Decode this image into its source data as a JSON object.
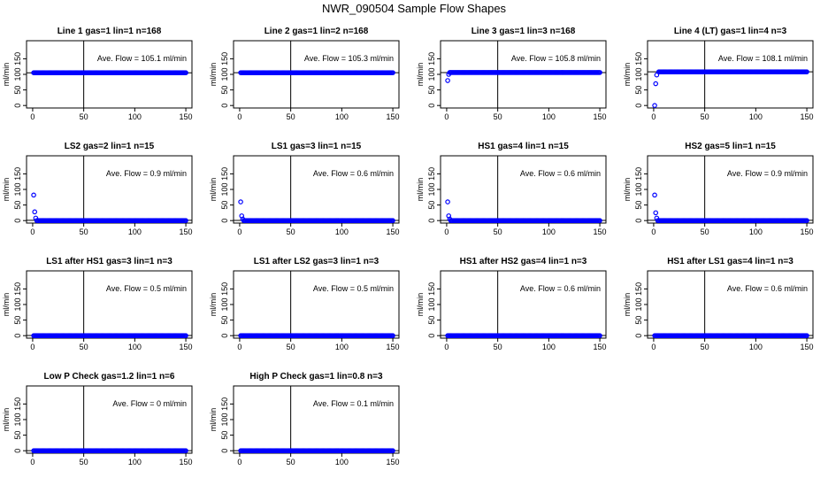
{
  "figure": {
    "title": "NWR_090504  Sample Flow Shapes"
  },
  "style": {
    "point_color": "#0000ff",
    "axis_color": "#000000"
  },
  "chart_data": [
    {
      "type": "scatter",
      "title": "Line 1 gas=1 lin=1 n=168",
      "annotation": "Ave. Flow =  105.1  ml/min",
      "xlabel": "",
      "ylabel": "ml/min",
      "xlim": [
        0,
        150
      ],
      "ylim": [
        0,
        200
      ],
      "xticks": [
        0,
        50,
        100,
        150
      ],
      "yticks": [
        0,
        50,
        100,
        150
      ],
      "vline": 50,
      "hline": 105.1,
      "series": [
        {
          "points": [
            [
              1,
              105.1
            ],
            [
              150,
              105.1
            ]
          ],
          "start": 1,
          "end": 150,
          "level": 105.1
        }
      ]
    },
    {
      "type": "scatter",
      "title": "Line 2 gas=1 lin=2 n=168",
      "annotation": "Ave. Flow =  105.3  ml/min",
      "xlabel": "",
      "ylabel": "ml/min",
      "xlim": [
        0,
        150
      ],
      "ylim": [
        0,
        200
      ],
      "xticks": [
        0,
        50,
        100,
        150
      ],
      "yticks": [
        0,
        50,
        100,
        150
      ],
      "vline": 50,
      "hline": 105.3,
      "series": [
        {
          "points": [
            [
              1,
              105.3
            ],
            [
              150,
              105.3
            ]
          ],
          "start": 1,
          "end": 150,
          "level": 105.3
        }
      ]
    },
    {
      "type": "scatter",
      "title": "Line 3 gas=1 lin=3 n=168",
      "annotation": "Ave. Flow =  105.8  ml/min",
      "xlabel": "",
      "ylabel": "ml/min",
      "xlim": [
        0,
        150
      ],
      "ylim": [
        0,
        200
      ],
      "xticks": [
        0,
        50,
        100,
        150
      ],
      "yticks": [
        0,
        50,
        100,
        150
      ],
      "vline": 50,
      "hline": 105.8,
      "series": [
        {
          "points": [
            [
              1,
              80
            ],
            [
              2,
              100
            ],
            [
              150,
              106
            ]
          ],
          "start": 3,
          "end": 150,
          "level": 106
        }
      ]
    },
    {
      "type": "scatter",
      "title": "Line 4 (LT) gas=1 lin=4 n=3",
      "annotation": "Ave. Flow =  108.1  ml/min",
      "xlabel": "",
      "ylabel": "ml/min",
      "xlim": [
        0,
        150
      ],
      "ylim": [
        0,
        200
      ],
      "xticks": [
        0,
        50,
        100,
        150
      ],
      "yticks": [
        0,
        50,
        100,
        150
      ],
      "vline": 50,
      "hline": 108.1,
      "series": [
        {
          "points": [
            [
              1,
              0
            ],
            [
              2,
              70
            ],
            [
              3,
              98
            ],
            [
              5,
              105
            ],
            [
              150,
              108
            ]
          ],
          "start": 5,
          "end": 150,
          "level": 108
        }
      ]
    },
    {
      "type": "scatter",
      "title": "LS2 gas=2 lin=1 n=15",
      "annotation": "Ave. Flow =  0.9  ml/min",
      "xlabel": "",
      "ylabel": "ml/min",
      "xlim": [
        0,
        150
      ],
      "ylim": [
        0,
        200
      ],
      "xticks": [
        0,
        50,
        100,
        150
      ],
      "yticks": [
        0,
        50,
        100,
        150
      ],
      "vline": 50,
      "hline": 0.9,
      "series": [
        {
          "points": [
            [
              1,
              82
            ],
            [
              2,
              28
            ],
            [
              3,
              8
            ],
            [
              150,
              0
            ]
          ],
          "start": 4,
          "end": 150,
          "level": 0
        }
      ]
    },
    {
      "type": "scatter",
      "title": "LS1 gas=3 lin=1 n=15",
      "annotation": "Ave. Flow =  0.6  ml/min",
      "xlabel": "",
      "ylabel": "ml/min",
      "xlim": [
        0,
        150
      ],
      "ylim": [
        0,
        200
      ],
      "xticks": [
        0,
        50,
        100,
        150
      ],
      "yticks": [
        0,
        50,
        100,
        150
      ],
      "vline": 50,
      "hline": 0.6,
      "series": [
        {
          "points": [
            [
              1,
              60
            ],
            [
              2,
              15
            ],
            [
              3,
              5
            ],
            [
              150,
              0
            ]
          ],
          "start": 4,
          "end": 150,
          "level": 0
        }
      ]
    },
    {
      "type": "scatter",
      "title": "HS1 gas=4 lin=1 n=15",
      "annotation": "Ave. Flow =  0.6  ml/min",
      "xlabel": "",
      "ylabel": "ml/min",
      "xlim": [
        0,
        150
      ],
      "ylim": [
        0,
        200
      ],
      "xticks": [
        0,
        50,
        100,
        150
      ],
      "yticks": [
        0,
        50,
        100,
        150
      ],
      "vline": 50,
      "hline": 0.6,
      "series": [
        {
          "points": [
            [
              1,
              60
            ],
            [
              2,
              15
            ],
            [
              3,
              5
            ],
            [
              150,
              0
            ]
          ],
          "start": 4,
          "end": 150,
          "level": 0
        }
      ]
    },
    {
      "type": "scatter",
      "title": "HS2 gas=5 lin=1 n=15",
      "annotation": "Ave. Flow =  0.9  ml/min",
      "xlabel": "",
      "ylabel": "ml/min",
      "xlim": [
        0,
        150
      ],
      "ylim": [
        0,
        200
      ],
      "xticks": [
        0,
        50,
        100,
        150
      ],
      "yticks": [
        0,
        50,
        100,
        150
      ],
      "vline": 50,
      "hline": 0.9,
      "series": [
        {
          "points": [
            [
              1,
              82
            ],
            [
              2,
              25
            ],
            [
              3,
              8
            ],
            [
              150,
              0
            ]
          ],
          "start": 4,
          "end": 150,
          "level": 0
        }
      ]
    },
    {
      "type": "scatter",
      "title": "LS1 after HS1 gas=3 lin=1 n=3",
      "annotation": "Ave. Flow =  0.5  ml/min",
      "xlabel": "",
      "ylabel": "ml/min",
      "xlim": [
        0,
        150
      ],
      "ylim": [
        0,
        200
      ],
      "xticks": [
        0,
        50,
        100,
        150
      ],
      "yticks": [
        0,
        50,
        100,
        150
      ],
      "vline": 50,
      "hline": 0.5,
      "series": [
        {
          "points": [
            [
              1,
              0
            ],
            [
              150,
              0
            ]
          ],
          "start": 1,
          "end": 150,
          "level": 0
        }
      ]
    },
    {
      "type": "scatter",
      "title": "LS1 after LS2 gas=3 lin=1 n=3",
      "annotation": "Ave. Flow =  0.5  ml/min",
      "xlabel": "",
      "ylabel": "ml/min",
      "xlim": [
        0,
        150
      ],
      "ylim": [
        0,
        200
      ],
      "xticks": [
        0,
        50,
        100,
        150
      ],
      "yticks": [
        0,
        50,
        100,
        150
      ],
      "vline": 50,
      "hline": 0.5,
      "series": [
        {
          "points": [
            [
              1,
              0
            ],
            [
              150,
              0
            ]
          ],
          "start": 1,
          "end": 150,
          "level": 0
        }
      ]
    },
    {
      "type": "scatter",
      "title": "HS1 after HS2 gas=4 lin=1 n=3",
      "annotation": "Ave. Flow =  0.6  ml/min",
      "xlabel": "",
      "ylabel": "ml/min",
      "xlim": [
        0,
        150
      ],
      "ylim": [
        0,
        200
      ],
      "xticks": [
        0,
        50,
        100,
        150
      ],
      "yticks": [
        0,
        50,
        100,
        150
      ],
      "vline": 50,
      "hline": 0.6,
      "series": [
        {
          "points": [
            [
              1,
              0
            ],
            [
              150,
              0
            ]
          ],
          "start": 1,
          "end": 150,
          "level": 0
        }
      ]
    },
    {
      "type": "scatter",
      "title": "HS1 after LS1 gas=4 lin=1 n=3",
      "annotation": "Ave. Flow =  0.6  ml/min",
      "xlabel": "",
      "ylabel": "ml/min",
      "xlim": [
        0,
        150
      ],
      "ylim": [
        0,
        200
      ],
      "xticks": [
        0,
        50,
        100,
        150
      ],
      "yticks": [
        0,
        50,
        100,
        150
      ],
      "vline": 50,
      "hline": 0.6,
      "series": [
        {
          "points": [
            [
              1,
              0
            ],
            [
              150,
              0
            ]
          ],
          "start": 1,
          "end": 150,
          "level": 0
        }
      ]
    },
    {
      "type": "scatter",
      "title": "Low P Check gas=1.2 lin=1 n=6",
      "annotation": "Ave. Flow =  0  ml/min",
      "xlabel": "",
      "ylabel": "ml/min",
      "xlim": [
        0,
        150
      ],
      "ylim": [
        0,
        200
      ],
      "xticks": [
        0,
        50,
        100,
        150
      ],
      "yticks": [
        0,
        50,
        100,
        150
      ],
      "vline": 50,
      "hline": 0,
      "series": [
        {
          "points": [
            [
              1,
              0
            ],
            [
              150,
              0
            ]
          ],
          "start": 1,
          "end": 150,
          "level": 0
        }
      ]
    },
    {
      "type": "scatter",
      "title": "High P Check gas=1 lin=0.8 n=3",
      "annotation": "Ave. Flow =  0.1  ml/min",
      "xlabel": "",
      "ylabel": "ml/min",
      "xlim": [
        0,
        150
      ],
      "ylim": [
        0,
        200
      ],
      "xticks": [
        0,
        50,
        100,
        150
      ],
      "yticks": [
        0,
        50,
        100,
        150
      ],
      "vline": 50,
      "hline": 0.1,
      "series": [
        {
          "points": [
            [
              1,
              0
            ],
            [
              150,
              0
            ]
          ],
          "start": 1,
          "end": 150,
          "level": 0
        }
      ]
    }
  ]
}
